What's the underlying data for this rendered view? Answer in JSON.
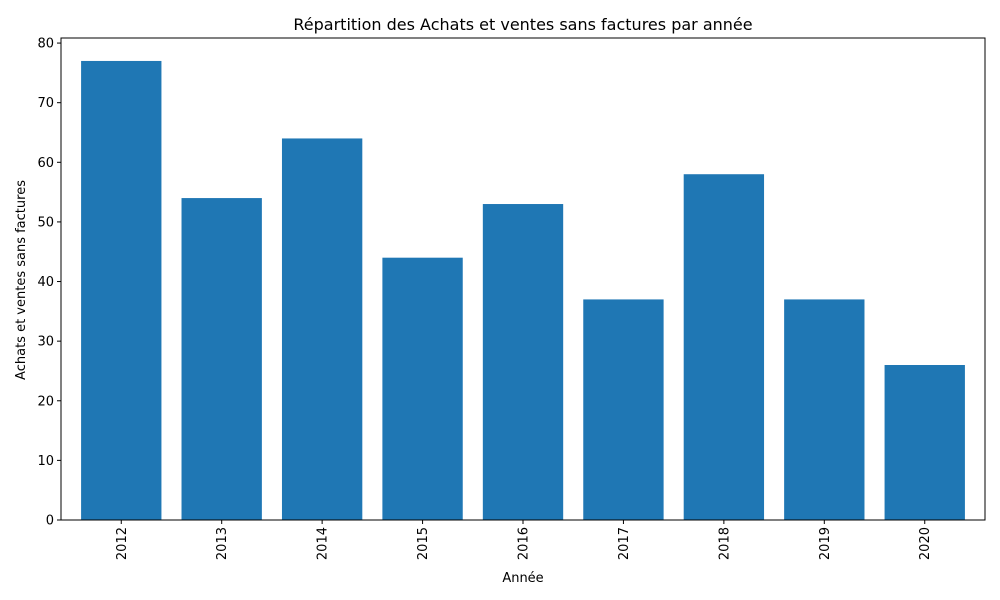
{
  "chart_data": {
    "type": "bar",
    "title": "Répartition des Achats et ventes sans factures par année",
    "xlabel": "Année",
    "ylabel": "Achats et ventes sans factures",
    "categories": [
      "2012",
      "2013",
      "2014",
      "2015",
      "2016",
      "2017",
      "2018",
      "2019",
      "2020"
    ],
    "values": [
      77,
      54,
      64,
      44,
      53,
      37,
      58,
      37,
      26
    ],
    "ylim": [
      0,
      80.85
    ],
    "yticks": [
      0,
      10,
      20,
      30,
      40,
      50,
      60,
      70,
      80
    ],
    "grid": false,
    "legend": "none",
    "x_tick_rotation": "vertical",
    "bar_color": "#1f77b4"
  }
}
